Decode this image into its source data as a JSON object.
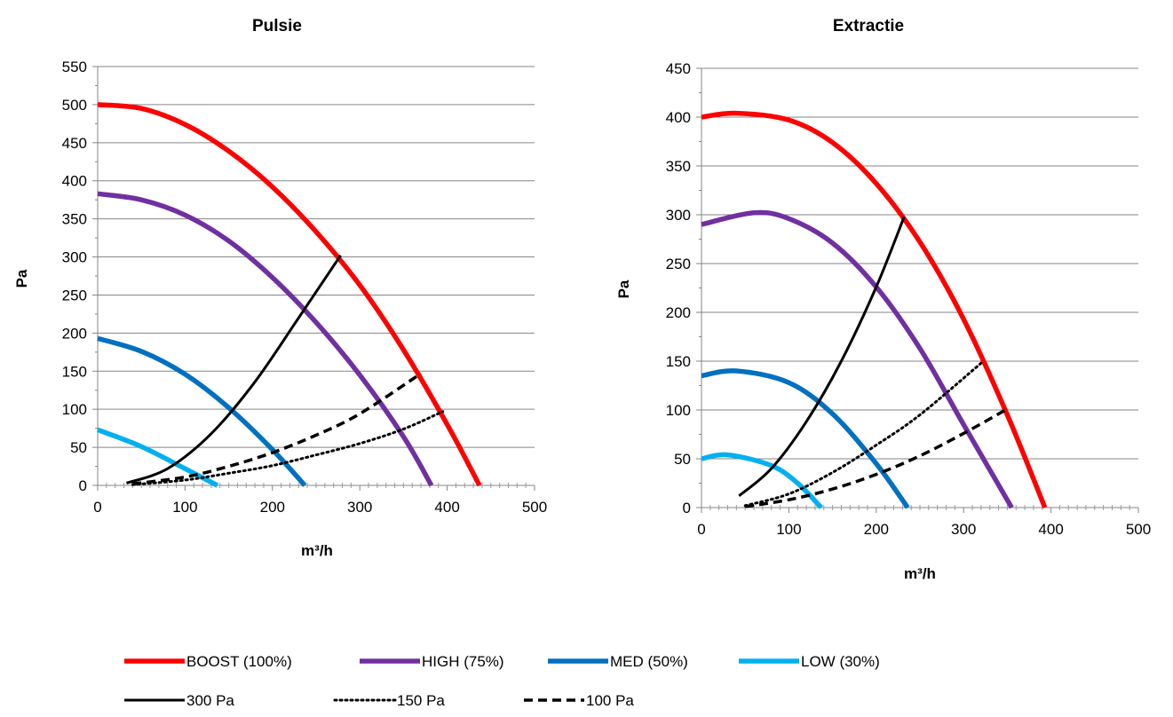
{
  "chart_data": [
    {
      "type": "line",
      "title": "Pulsie",
      "xlabel": "m³/h",
      "ylabel": "Pa",
      "xlim": [
        0,
        500
      ],
      "ylim": [
        0,
        550
      ],
      "xticks": [
        0,
        100,
        200,
        300,
        400,
        500
      ],
      "yticks": [
        0,
        50,
        100,
        150,
        200,
        250,
        300,
        350,
        400,
        450,
        500,
        550
      ],
      "grid": "horizontal",
      "series": [
        {
          "name": "BOOST (100%)",
          "color": "#ff0000",
          "style": "solid-thick",
          "x": [
            0,
            50,
            100,
            150,
            200,
            250,
            300,
            350,
            400,
            437
          ],
          "y": [
            500,
            495,
            474,
            439,
            392,
            333,
            263,
            178,
            80,
            0
          ]
        },
        {
          "name": "HIGH (75%)",
          "color": "#7030a0",
          "style": "solid-thick",
          "x": [
            0,
            50,
            100,
            150,
            200,
            250,
            300,
            350,
            382
          ],
          "y": [
            383,
            375,
            355,
            321,
            273,
            214,
            145,
            64,
            0
          ]
        },
        {
          "name": "MED (50%)",
          "color": "#0070c0",
          "style": "solid-thick",
          "x": [
            0,
            50,
            100,
            150,
            200,
            237
          ],
          "y": [
            193,
            176,
            146,
            102,
            47,
            0
          ]
        },
        {
          "name": "LOW (30%)",
          "color": "#00b0f0",
          "style": "solid-thick",
          "x": [
            0,
            50,
            100,
            137
          ],
          "y": [
            73,
            51,
            22,
            0
          ]
        },
        {
          "name": "300 Pa",
          "color": "#000000",
          "style": "solid",
          "x": [
            33,
            80,
            130,
            180,
            230,
            278
          ],
          "y": [
            3,
            22,
            68,
            136,
            220,
            302
          ]
        },
        {
          "name": "150 Pa",
          "color": "#000000",
          "style": "dotted",
          "x": [
            40,
            100,
            150,
            200,
            250,
            300,
            350,
            395
          ],
          "y": [
            1,
            7,
            16,
            26,
            40,
            55,
            74,
            97
          ]
        },
        {
          "name": "100 Pa",
          "color": "#000000",
          "style": "dashed",
          "x": [
            40,
            100,
            150,
            200,
            250,
            300,
            370
          ],
          "y": [
            2,
            11,
            25,
            43,
            66,
            94,
            147
          ]
        }
      ]
    },
    {
      "type": "line",
      "title": "Extractie",
      "xlabel": "m³/h",
      "ylabel": "Pa",
      "xlim": [
        0,
        500
      ],
      "ylim": [
        0,
        450
      ],
      "xticks": [
        0,
        100,
        200,
        300,
        400,
        500
      ],
      "yticks": [
        0,
        50,
        100,
        150,
        200,
        250,
        300,
        350,
        400,
        450
      ],
      "grid": "horizontal",
      "series": [
        {
          "name": "BOOST (100%)",
          "color": "#ff0000",
          "style": "solid-thick",
          "x": [
            0,
            40,
            100,
            150,
            200,
            250,
            300,
            350,
            393
          ],
          "y": [
            400,
            404,
            397,
            374,
            332,
            272,
            193,
            95,
            0
          ]
        },
        {
          "name": "HIGH (75%)",
          "color": "#7030a0",
          "style": "solid-thick",
          "x": [
            0,
            60,
            100,
            150,
            200,
            250,
            300,
            355
          ],
          "y": [
            290,
            302,
            296,
            271,
            226,
            163,
            85,
            0
          ]
        },
        {
          "name": "MED (50%)",
          "color": "#0070c0",
          "style": "solid-thick",
          "x": [
            0,
            40,
            100,
            150,
            200,
            236
          ],
          "y": [
            135,
            140,
            128,
            96,
            45,
            0
          ]
        },
        {
          "name": "LOW (30%)",
          "color": "#00b0f0",
          "style": "solid-thick",
          "x": [
            0,
            30,
            80,
            110,
            137
          ],
          "y": [
            50,
            54,
            43,
            25,
            0
          ]
        },
        {
          "name": "300 Pa",
          "color": "#000000",
          "style": "solid",
          "x": [
            43,
            80,
            120,
            160,
            200,
            232
          ],
          "y": [
            12,
            40,
            88,
            150,
            226,
            298
          ]
        },
        {
          "name": "150 Pa",
          "color": "#000000",
          "style": "dotted",
          "x": [
            50,
            100,
            150,
            200,
            250,
            320
          ],
          "y": [
            2,
            14,
            36,
            64,
            95,
            148
          ]
        },
        {
          "name": "100 Pa",
          "color": "#000000",
          "style": "dashed",
          "x": [
            50,
            100,
            150,
            200,
            250,
            300,
            350
          ],
          "y": [
            1,
            8,
            19,
            34,
            53,
            76,
            101
          ]
        }
      ]
    }
  ],
  "legend": {
    "placement": "bottom",
    "entries": [
      {
        "label": "BOOST (100%)",
        "color": "#ff0000",
        "style": "solid-thick"
      },
      {
        "label": "HIGH (75%)",
        "color": "#7030a0",
        "style": "solid-thick"
      },
      {
        "label": "MED (50%)",
        "color": "#0070c0",
        "style": "solid-thick"
      },
      {
        "label": "LOW (30%)",
        "color": "#00b0f0",
        "style": "solid-thick"
      },
      {
        "label": "300 Pa",
        "color": "#000000",
        "style": "solid"
      },
      {
        "label": "150 Pa",
        "color": "#000000",
        "style": "dotted"
      },
      {
        "label": "100 Pa",
        "color": "#000000",
        "style": "dashed"
      }
    ]
  }
}
